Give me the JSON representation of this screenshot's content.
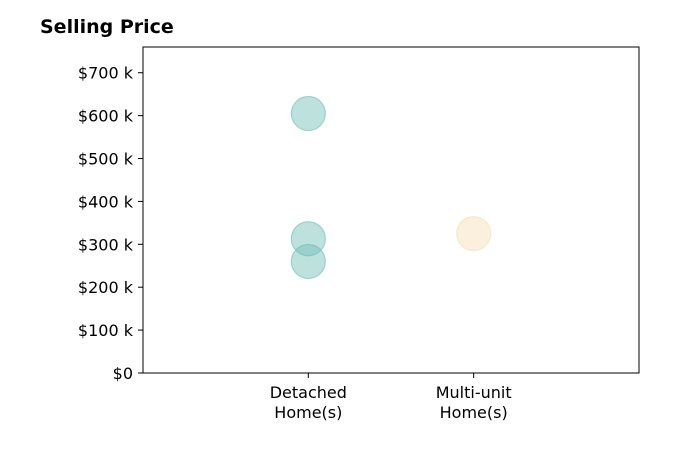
{
  "chart_data": {
    "type": "scatter",
    "title": "Selling Price",
    "xlabel": "",
    "ylabel": "",
    "categories": [
      [
        "Detached",
        "Home(s)"
      ],
      [
        "Multi-unit",
        "Home(s)"
      ]
    ],
    "y_ticks": [
      "$0",
      "$100 k",
      "$200 k",
      "$300 k",
      "$400 k",
      "$500 k",
      "$600 k",
      "$700 k"
    ],
    "y_tick_values": [
      0,
      100,
      200,
      300,
      400,
      500,
      600,
      700
    ],
    "ylim": [
      0,
      760
    ],
    "xlim": [
      -1,
      2
    ],
    "grid": false,
    "series": [
      {
        "category_index": 0,
        "color": "#6cbfb3",
        "points": [
          605,
          313,
          260
        ]
      },
      {
        "category_index": 1,
        "color": "#f5deb3",
        "points": [
          325
        ]
      }
    ]
  }
}
